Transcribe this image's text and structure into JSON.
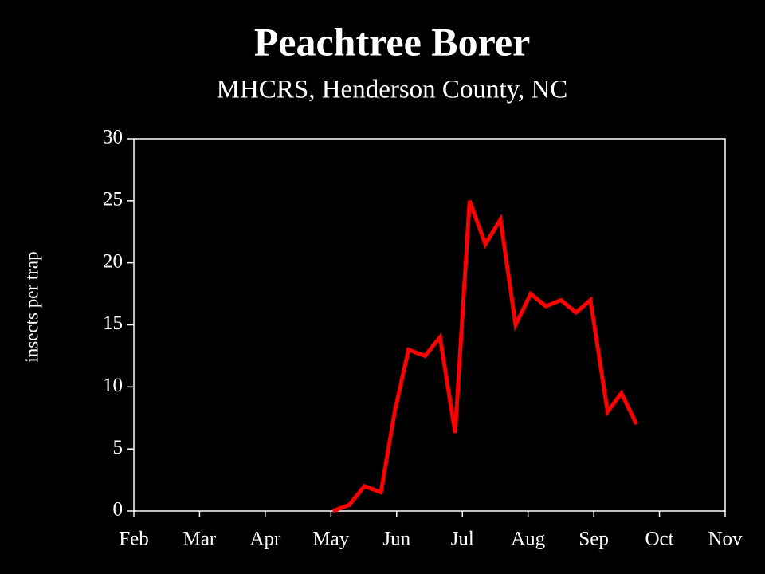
{
  "chart_data": {
    "type": "line",
    "title": "Peachtree Borer",
    "subtitle": "MHCRS, Henderson County, NC",
    "y_label": "insects per trap",
    "x": [
      5.03,
      5.28,
      5.51,
      5.76,
      5.97,
      6.18,
      6.43,
      6.66,
      6.89,
      7.11,
      7.35,
      7.58,
      7.81,
      8.04,
      8.27,
      8.5,
      8.73,
      8.95,
      9.21,
      9.42,
      9.65
    ],
    "series": [
      {
        "name": "insects per trap",
        "color": "#ff0000",
        "values": [
          0,
          0.5,
          2,
          1.5,
          8,
          13,
          12.5,
          14,
          6.3,
          25,
          21.5,
          23.5,
          15,
          17.5,
          16.5,
          17,
          16,
          17,
          8,
          9.5,
          7
        ]
      }
    ],
    "xlim": [
      2,
      11
    ],
    "xticks": [
      {
        "value": 2,
        "label": "Feb"
      },
      {
        "value": 3,
        "label": "Mar"
      },
      {
        "value": 4,
        "label": "Apr"
      },
      {
        "value": 5,
        "label": "May"
      },
      {
        "value": 6,
        "label": "Jun"
      },
      {
        "value": 7,
        "label": "Jul"
      },
      {
        "value": 8,
        "label": "Aug"
      },
      {
        "value": 9,
        "label": "Sep"
      },
      {
        "value": 10,
        "label": "Oct"
      },
      {
        "value": 11,
        "label": "Nov"
      }
    ],
    "ylim": [
      0,
      30
    ],
    "yticks": [
      0,
      5,
      10,
      15,
      20,
      25,
      30
    ],
    "grid": false
  }
}
